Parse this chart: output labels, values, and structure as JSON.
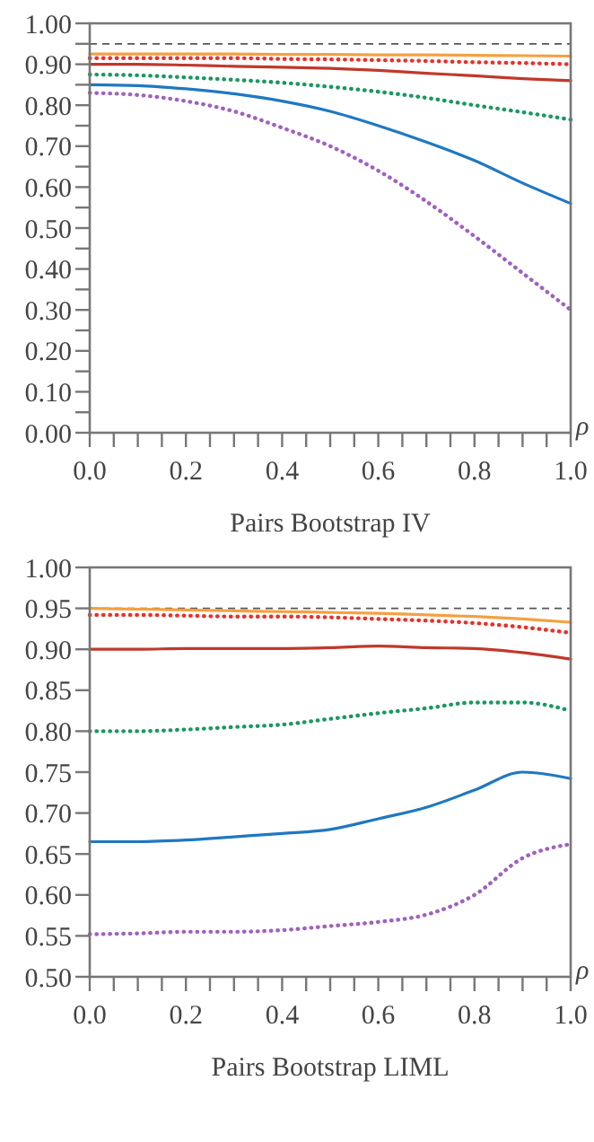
{
  "chart_data": [
    {
      "type": "line",
      "title": "Pairs Bootstrap IV",
      "xlabel": "ρ",
      "x": [
        0,
        0.1,
        0.2,
        0.3,
        0.4,
        0.5,
        0.6,
        0.7,
        0.8,
        0.9,
        1.0
      ],
      "xlim": [
        0,
        1
      ],
      "xticks": [
        {
          "value": 0,
          "label": "0.0"
        },
        {
          "value": 0.05,
          "label": null
        },
        {
          "value": 0.1,
          "label": null
        },
        {
          "value": 0.15,
          "label": null
        },
        {
          "value": 0.2,
          "label": "0.2"
        },
        {
          "value": 0.25,
          "label": null
        },
        {
          "value": 0.3,
          "label": null
        },
        {
          "value": 0.35,
          "label": null
        },
        {
          "value": 0.4,
          "label": "0.4"
        },
        {
          "value": 0.45,
          "label": null
        },
        {
          "value": 0.5,
          "label": null
        },
        {
          "value": 0.55,
          "label": null
        },
        {
          "value": 0.6,
          "label": "0.6"
        },
        {
          "value": 0.65,
          "label": null
        },
        {
          "value": 0.7,
          "label": null
        },
        {
          "value": 0.75,
          "label": null
        },
        {
          "value": 0.8,
          "label": "0.8"
        },
        {
          "value": 0.85,
          "label": null
        },
        {
          "value": 0.9,
          "label": null
        },
        {
          "value": 0.95,
          "label": null
        },
        {
          "value": 1,
          "label": "1.0"
        }
      ],
      "ylim": [
        0,
        1
      ],
      "yticks": [
        {
          "value": 0,
          "label": "0.00"
        },
        {
          "value": 0.05,
          "label": null
        },
        {
          "value": 0.1,
          "label": "0.10"
        },
        {
          "value": 0.15,
          "label": null
        },
        {
          "value": 0.2,
          "label": "0.20"
        },
        {
          "value": 0.25,
          "label": null
        },
        {
          "value": 0.3,
          "label": "0.30"
        },
        {
          "value": 0.35,
          "label": null
        },
        {
          "value": 0.4,
          "label": "0.40"
        },
        {
          "value": 0.45,
          "label": null
        },
        {
          "value": 0.5,
          "label": "0.50"
        },
        {
          "value": 0.55,
          "label": null
        },
        {
          "value": 0.6,
          "label": "0.60"
        },
        {
          "value": 0.65,
          "label": null
        },
        {
          "value": 0.7,
          "label": "0.70"
        },
        {
          "value": 0.75,
          "label": null
        },
        {
          "value": 0.8,
          "label": "0.80"
        },
        {
          "value": 0.85,
          "label": null
        },
        {
          "value": 0.9,
          "label": "0.90"
        },
        {
          "value": 0.95,
          "label": null
        },
        {
          "value": 1,
          "label": "1.00"
        }
      ],
      "grid": false,
      "ref_lines": [
        {
          "axis": "y",
          "value": 0.95,
          "color": "#555555",
          "line_style": "dashed"
        }
      ],
      "series": [
        {
          "color": "#f5a040",
          "line_style": "solid",
          "values": [
            0.925,
            0.925,
            0.925,
            0.925,
            0.924,
            0.924,
            0.923,
            0.923,
            0.922,
            0.921,
            0.92
          ]
        },
        {
          "color": "#e8302a",
          "line_style": "dotted",
          "values": [
            0.915,
            0.915,
            0.915,
            0.915,
            0.913,
            0.912,
            0.91,
            0.908,
            0.905,
            0.903,
            0.9
          ]
        },
        {
          "color": "#c0392b",
          "line_style": "solid",
          "values": [
            0.9,
            0.9,
            0.898,
            0.895,
            0.893,
            0.89,
            0.885,
            0.878,
            0.872,
            0.865,
            0.86
          ]
        },
        {
          "color": "#1a9860",
          "line_style": "dotted",
          "values": [
            0.875,
            0.873,
            0.868,
            0.862,
            0.855,
            0.845,
            0.833,
            0.818,
            0.8,
            0.783,
            0.765
          ]
        },
        {
          "color": "#1f78c1",
          "line_style": "solid",
          "values": [
            0.85,
            0.848,
            0.84,
            0.828,
            0.81,
            0.785,
            0.75,
            0.71,
            0.665,
            0.61,
            0.56
          ]
        },
        {
          "color": "#a060c0",
          "line_style": "dotted",
          "values": [
            0.83,
            0.825,
            0.81,
            0.785,
            0.745,
            0.7,
            0.64,
            0.565,
            0.48,
            0.39,
            0.3
          ]
        }
      ]
    },
    {
      "type": "line",
      "title": "Pairs Bootstrap LIML",
      "xlabel": "ρ",
      "x": [
        0,
        0.1,
        0.2,
        0.3,
        0.4,
        0.5,
        0.6,
        0.7,
        0.8,
        0.9,
        1.0
      ],
      "xlim": [
        0,
        1
      ],
      "xticks": [
        {
          "value": 0,
          "label": "0.0"
        },
        {
          "value": 0.05,
          "label": null
        },
        {
          "value": 0.1,
          "label": null
        },
        {
          "value": 0.15,
          "label": null
        },
        {
          "value": 0.2,
          "label": "0.2"
        },
        {
          "value": 0.25,
          "label": null
        },
        {
          "value": 0.3,
          "label": null
        },
        {
          "value": 0.35,
          "label": null
        },
        {
          "value": 0.4,
          "label": "0.4"
        },
        {
          "value": 0.45,
          "label": null
        },
        {
          "value": 0.5,
          "label": null
        },
        {
          "value": 0.55,
          "label": null
        },
        {
          "value": 0.6,
          "label": "0.6"
        },
        {
          "value": 0.65,
          "label": null
        },
        {
          "value": 0.7,
          "label": null
        },
        {
          "value": 0.75,
          "label": null
        },
        {
          "value": 0.8,
          "label": "0.8"
        },
        {
          "value": 0.85,
          "label": null
        },
        {
          "value": 0.9,
          "label": null
        },
        {
          "value": 0.95,
          "label": null
        },
        {
          "value": 1,
          "label": "1.0"
        }
      ],
      "ylim": [
        0.5,
        1
      ],
      "yticks": [
        {
          "value": 0.5,
          "label": "0.50"
        },
        {
          "value": 0.55,
          "label": "0.55"
        },
        {
          "value": 0.6,
          "label": "0.60"
        },
        {
          "value": 0.65,
          "label": "0.65"
        },
        {
          "value": 0.7,
          "label": "0.70"
        },
        {
          "value": 0.75,
          "label": "0.75"
        },
        {
          "value": 0.8,
          "label": "0.80"
        },
        {
          "value": 0.85,
          "label": "0.85"
        },
        {
          "value": 0.9,
          "label": "0.90"
        },
        {
          "value": 0.95,
          "label": "0.95"
        },
        {
          "value": 1,
          "label": "1.00"
        }
      ],
      "grid": false,
      "ref_lines": [
        {
          "axis": "y",
          "value": 0.95,
          "color": "#555555",
          "line_style": "dashed"
        }
      ],
      "series": [
        {
          "color": "#f5a040",
          "line_style": "solid",
          "values": [
            0.95,
            0.949,
            0.948,
            0.947,
            0.946,
            0.945,
            0.944,
            0.942,
            0.94,
            0.937,
            0.933
          ]
        },
        {
          "color": "#e8302a",
          "line_style": "dotted",
          "values": [
            0.942,
            0.942,
            0.941,
            0.94,
            0.94,
            0.939,
            0.937,
            0.935,
            0.932,
            0.927,
            0.92
          ]
        },
        {
          "color": "#c0392b",
          "line_style": "solid",
          "values": [
            0.9,
            0.9,
            0.901,
            0.901,
            0.901,
            0.902,
            0.904,
            0.902,
            0.901,
            0.896,
            0.888
          ]
        },
        {
          "color": "#1a9860",
          "line_style": "dotted",
          "values": [
            0.8,
            0.8,
            0.802,
            0.805,
            0.808,
            0.815,
            0.822,
            0.828,
            0.835,
            0.835,
            0.825
          ]
        },
        {
          "color": "#1f78c1",
          "line_style": "solid",
          "values": [
            0.665,
            0.665,
            0.667,
            0.671,
            0.675,
            0.68,
            0.693,
            0.707,
            0.728,
            0.75,
            0.742
          ]
        },
        {
          "color": "#a060c0",
          "line_style": "dotted",
          "values": [
            0.552,
            0.553,
            0.555,
            0.555,
            0.557,
            0.562,
            0.567,
            0.576,
            0.6,
            0.645,
            0.662
          ]
        }
      ]
    }
  ]
}
